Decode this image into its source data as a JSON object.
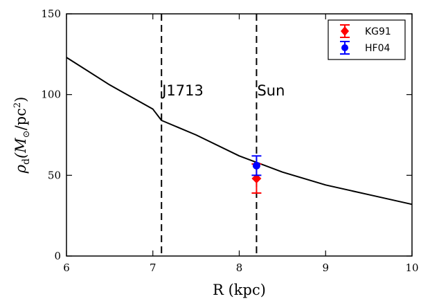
{
  "chart_data": {
    "type": "scatter",
    "xlabel": "R (kpc)",
    "ylabel_main": "ρ",
    "ylabel_sub": "d",
    "ylabel_rest": "(M",
    "ylabel_sun": "⊙",
    "ylabel_unit": "/pc",
    "ylabel_sup": "2",
    "ylabel_close": ")",
    "xlim": [
      6,
      10
    ],
    "ylim": [
      0,
      150
    ],
    "x_ticks": [
      "6",
      "7",
      "8",
      "9",
      "10"
    ],
    "y_ticks": [
      "0",
      "50",
      "100",
      "150"
    ],
    "grid": false,
    "legend_position": "top-right",
    "curve": {
      "x": [
        6.0,
        6.5,
        7.0,
        7.1,
        7.5,
        8.0,
        8.2,
        8.5,
        9.0,
        9.5,
        10.0
      ],
      "y": [
        123,
        106,
        91,
        84,
        75,
        62,
        58,
        52,
        44,
        38,
        32
      ]
    },
    "vlines": [
      {
        "x": 7.1,
        "label": "J1713"
      },
      {
        "x": 8.2,
        "label": "Sun"
      }
    ],
    "series": [
      {
        "name": "KG91",
        "color": "#ff0000",
        "marker": "diamond",
        "x": 8.2,
        "y": 48,
        "err_low": 39,
        "err_high": 57
      },
      {
        "name": "HF04",
        "color": "#0000ff",
        "marker": "circle",
        "x": 8.2,
        "y": 56,
        "err_low": 50,
        "err_high": 62
      }
    ]
  }
}
